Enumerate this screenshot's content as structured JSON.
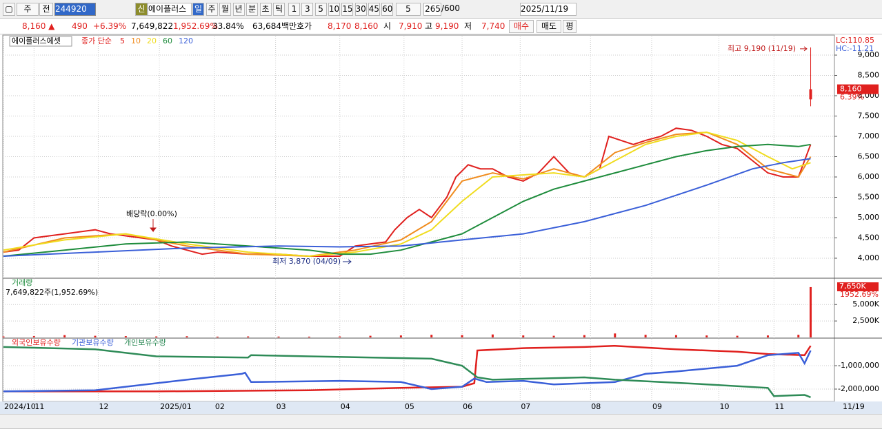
{
  "toolbar": {
    "period": "주",
    "prev": "전",
    "code": "244920",
    "new": "신",
    "name": "에이플러스",
    "intervals": [
      "일",
      "주",
      "월",
      "년",
      "분",
      "초",
      "틱"
    ],
    "minutes": [
      "1",
      "3",
      "5",
      "10",
      "15",
      "30",
      "45",
      "60"
    ],
    "minute_select": "5",
    "count": "265",
    "max": "/600",
    "date": "2025/11/19"
  },
  "quote": {
    "price": "8,160 ▲",
    "change": "490",
    "change_pct": "+6.39%",
    "volume": "7,649,822",
    "volume_pct": "1,952.69%",
    "turnover": "33.84%",
    "amount": "63,684백만",
    "quote_label": "호가",
    "ask": "8,170",
    "bid": "8,160",
    "open_label": "시",
    "open": "7,910",
    "high_label": "고",
    "high": "9,190",
    "low_label": "저",
    "low": "7,740",
    "buy": "매수",
    "sell": "매도",
    "avg": "평"
  },
  "chart": {
    "type": "line",
    "xlim": [
      0,
      272
    ],
    "xticks": [
      {
        "value": 0,
        "label": "2024/10"
      },
      {
        "value": 10,
        "label": "11"
      },
      {
        "value": 31,
        "label": "12"
      },
      {
        "value": 51,
        "label": "2025/01"
      },
      {
        "value": 69,
        "label": "02"
      },
      {
        "value": 89,
        "label": "03"
      },
      {
        "value": 110,
        "label": "04"
      },
      {
        "value": 131,
        "label": "05"
      },
      {
        "value": 150,
        "label": "06"
      },
      {
        "value": 169,
        "label": "07"
      },
      {
        "value": 192,
        "label": "08"
      },
      {
        "value": 212,
        "label": "09"
      },
      {
        "value": 234,
        "label": "10"
      },
      {
        "value": 252,
        "label": "11"
      }
    ],
    "last_date": "11/19",
    "price": {
      "legend_title": "에이플러스에셋",
      "legend_label": "종가 단순",
      "lc": "LC:110.85",
      "hc": "HC:-11.21",
      "ylim": [
        3525,
        9475
      ],
      "yticks": [
        {
          "value": 4000,
          "label": "4,000"
        },
        {
          "value": 4500,
          "label": "4,500"
        },
        {
          "value": 5000,
          "label": "5,000"
        },
        {
          "value": 5500,
          "label": "5,500"
        },
        {
          "value": 6000,
          "label": "6,000"
        },
        {
          "value": 6500,
          "label": "6,500"
        },
        {
          "value": 7000,
          "label": "7,000"
        },
        {
          "value": 7500,
          "label": "7,500"
        },
        {
          "value": 8000,
          "label": "8,000"
        },
        {
          "value": 8500,
          "label": "8,500"
        },
        {
          "value": 9000,
          "label": "9,000"
        }
      ],
      "series": [
        {
          "name": "5",
          "color": "#e0201e",
          "x": [
            0,
            5,
            10,
            15,
            20,
            25,
            30,
            35,
            40,
            45,
            50,
            55,
            60,
            65,
            70,
            80,
            90,
            100,
            110,
            115,
            120,
            125,
            128,
            132,
            136,
            140,
            145,
            148,
            152,
            156,
            160,
            165,
            170,
            175,
            180,
            185,
            190,
            195,
            198,
            202,
            206,
            210,
            215,
            220,
            225,
            230,
            235,
            240,
            245,
            250,
            255,
            260,
            264
          ],
          "values": [
            4150,
            4200,
            4500,
            4550,
            4600,
            4650,
            4700,
            4600,
            4550,
            4500,
            4450,
            4300,
            4200,
            4100,
            4150,
            4100,
            4100,
            4050,
            4050,
            4300,
            4350,
            4400,
            4700,
            5000,
            5200,
            5000,
            5500,
            6000,
            6300,
            6200,
            6200,
            6000,
            5900,
            6100,
            6500,
            6100,
            6000,
            6200,
            7000,
            6900,
            6800,
            6900,
            7000,
            7200,
            7150,
            7000,
            6800,
            6700,
            6400,
            6100,
            6000,
            6000,
            6800
          ]
        },
        {
          "name": "10",
          "color": "#f08c1e",
          "x": [
            0,
            20,
            40,
            60,
            80,
            100,
            115,
            130,
            140,
            150,
            160,
            170,
            180,
            190,
            200,
            210,
            220,
            230,
            240,
            250,
            260,
            264
          ],
          "values": [
            4150,
            4500,
            4600,
            4300,
            4100,
            4050,
            4200,
            4450,
            4900,
            5900,
            6100,
            5950,
            6200,
            6000,
            6600,
            6850,
            7050,
            7100,
            6800,
            6200,
            6000,
            6500
          ]
        },
        {
          "name": "20",
          "color": "#f0dc1e",
          "x": [
            0,
            20,
            40,
            60,
            80,
            100,
            115,
            130,
            140,
            150,
            160,
            170,
            180,
            190,
            200,
            210,
            220,
            230,
            240,
            250,
            258,
            264
          ],
          "values": [
            4200,
            4450,
            4600,
            4350,
            4150,
            4050,
            4150,
            4350,
            4700,
            5400,
            6000,
            6050,
            6100,
            6000,
            6400,
            6800,
            7000,
            7100,
            6900,
            6500,
            6200,
            6350
          ]
        },
        {
          "name": "60",
          "color": "#1e8c3c",
          "x": [
            0,
            20,
            40,
            60,
            80,
            100,
            110,
            120,
            130,
            140,
            150,
            160,
            170,
            180,
            190,
            200,
            210,
            220,
            230,
            240,
            250,
            260,
            264
          ],
          "values": [
            4050,
            4200,
            4350,
            4400,
            4300,
            4200,
            4100,
            4100,
            4200,
            4400,
            4600,
            5000,
            5400,
            5700,
            5900,
            6100,
            6300,
            6500,
            6650,
            6750,
            6800,
            6750,
            6800
          ]
        },
        {
          "name": "120",
          "color": "#3a5fd8",
          "x": [
            0,
            30,
            60,
            90,
            110,
            130,
            150,
            170,
            190,
            210,
            230,
            245,
            255,
            264
          ],
          "values": [
            4050,
            4150,
            4250,
            4300,
            4280,
            4300,
            4450,
            4600,
            4900,
            5300,
            5800,
            6200,
            6350,
            6450
          ]
        }
      ],
      "candle": {
        "x": 264,
        "open": 7910,
        "high": 9190,
        "low": 7740,
        "close": 8160,
        "color": "#e0201e"
      },
      "last_price": "8,160",
      "last_pct": "6.39%",
      "high_note": "최고 9,190 (11/19)",
      "low_note": "최저 3,870 (04/09)",
      "dividend_note": "배당락(0.00%)"
    },
    "volume": {
      "title": "거래량",
      "summary": "7,649,822주(1,952.69%)",
      "color": "#e0201e",
      "ylim": [
        0,
        8900000
      ],
      "yticks": [
        {
          "value": 2500000,
          "label": "2,500K"
        },
        {
          "value": 5000000,
          "label": "5,000K"
        }
      ],
      "x": [
        0,
        10,
        20,
        30,
        40,
        50,
        60,
        70,
        80,
        90,
        100,
        110,
        120,
        130,
        140,
        150,
        160,
        170,
        180,
        190,
        200,
        210,
        220,
        230,
        240,
        250,
        260,
        264
      ],
      "values": [
        150000,
        200000,
        350000,
        250000,
        200000,
        150000,
        180000,
        120000,
        150000,
        130000,
        120000,
        150000,
        250000,
        300000,
        400000,
        350000,
        450000,
        300000,
        250000,
        350000,
        600000,
        400000,
        350000,
        300000,
        250000,
        300000,
        400000,
        7649822
      ],
      "last_label": "7,650K",
      "last_pct": "1952.69%"
    },
    "holdings": {
      "ylim": [
        -2500000,
        150000
      ],
      "yticks": [
        {
          "value": -1000000,
          "label": "-1,000,000"
        },
        {
          "value": -2000000,
          "label": "-2,000,000"
        }
      ],
      "series": [
        {
          "name": "외국인보유수량",
          "color": "#e0201e",
          "x": [
            0,
            50,
            100,
            130,
            150,
            154,
            155,
            170,
            190,
            200,
            220,
            240,
            250,
            262,
            264
          ],
          "values": [
            -2100000,
            -2100000,
            -2050000,
            -1950000,
            -1900000,
            -1750000,
            -350000,
            -250000,
            -200000,
            -150000,
            -300000,
            -400000,
            -500000,
            -550000,
            -150000
          ]
        },
        {
          "name": "기관보유수량",
          "color": "#3a5fd8",
          "x": [
            0,
            30,
            60,
            78,
            79,
            81,
            110,
            130,
            140,
            150,
            154,
            158,
            170,
            180,
            200,
            210,
            220,
            240,
            250,
            260,
            262,
            264
          ],
          "values": [
            -2100000,
            -2050000,
            -1600000,
            -1350000,
            -1300000,
            -1700000,
            -1650000,
            -1700000,
            -2000000,
            -1900000,
            -1550000,
            -1700000,
            -1650000,
            -1800000,
            -1700000,
            -1350000,
            -1250000,
            -1000000,
            -550000,
            -450000,
            -900000,
            -350000
          ]
        },
        {
          "name": "개인보유수량",
          "color": "#2e8b57",
          "x": [
            0,
            30,
            50,
            80,
            81,
            100,
            140,
            150,
            155,
            160,
            175,
            190,
            200,
            230,
            250,
            252,
            262,
            264
          ],
          "values": [
            -200000,
            -300000,
            -600000,
            -650000,
            -550000,
            -600000,
            -700000,
            -1000000,
            -1500000,
            -1600000,
            -1550000,
            -1500000,
            -1600000,
            -1800000,
            -1950000,
            -2300000,
            -2250000,
            -2350000
          ]
        }
      ]
    }
  }
}
